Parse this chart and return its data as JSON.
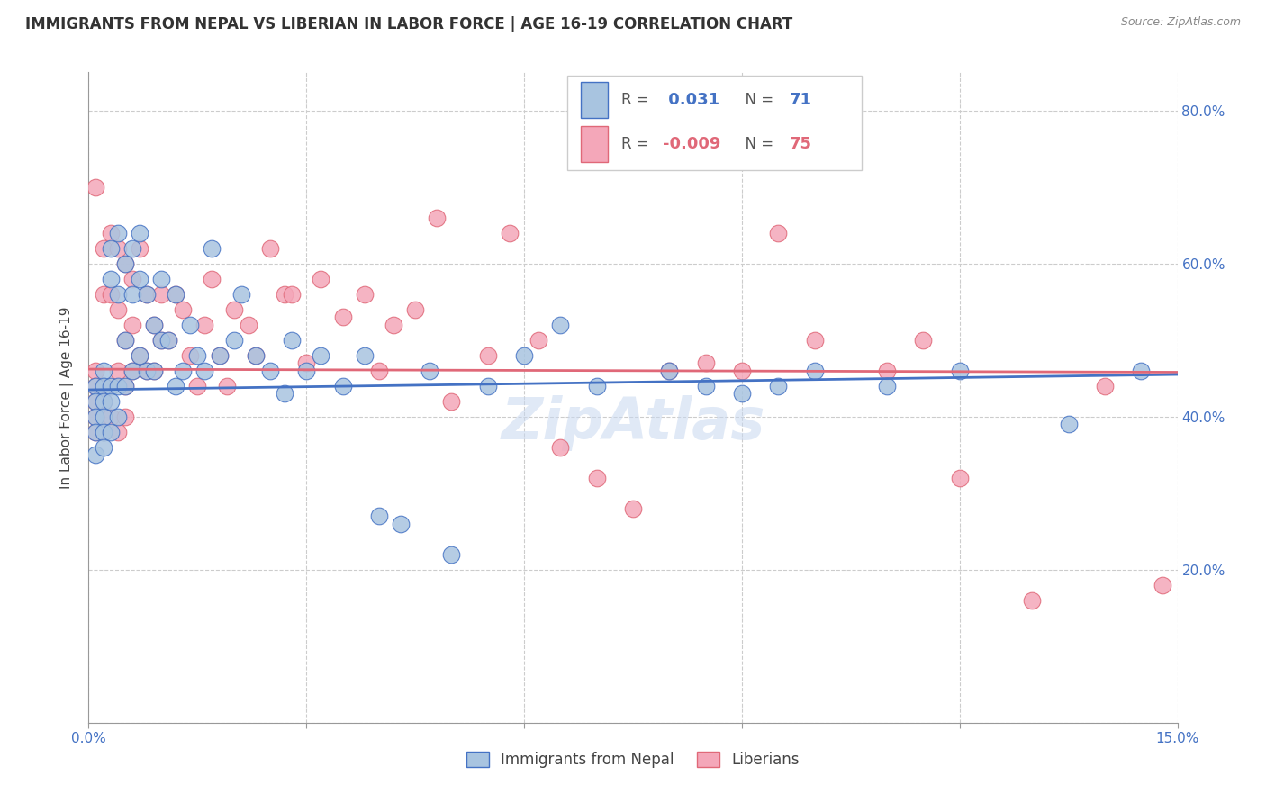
{
  "title": "IMMIGRANTS FROM NEPAL VS LIBERIAN IN LABOR FORCE | AGE 16-19 CORRELATION CHART",
  "source": "Source: ZipAtlas.com",
  "ylabel": "In Labor Force | Age 16-19",
  "x_min": 0.0,
  "x_max": 0.15,
  "y_min": 0.0,
  "y_max": 0.85,
  "x_ticks": [
    0.0,
    0.03,
    0.06,
    0.09,
    0.12,
    0.15
  ],
  "y_ticks": [
    0.0,
    0.2,
    0.4,
    0.6,
    0.8
  ],
  "y_tick_labels": [
    "",
    "20.0%",
    "40.0%",
    "60.0%",
    "80.0%"
  ],
  "nepal_color": "#a8c4e0",
  "liberia_color": "#f4a7b9",
  "nepal_line_color": "#4472c4",
  "liberia_line_color": "#e06878",
  "legend_nepal_label": "Immigrants from Nepal",
  "legend_liberia_label": "Liberians",
  "r_nepal": "0.031",
  "r_liberia": "-0.009",
  "n_nepal": "71",
  "n_liberia": "75",
  "nepal_x": [
    0.001,
    0.001,
    0.001,
    0.001,
    0.001,
    0.002,
    0.002,
    0.002,
    0.002,
    0.002,
    0.002,
    0.003,
    0.003,
    0.003,
    0.003,
    0.003,
    0.004,
    0.004,
    0.004,
    0.004,
    0.005,
    0.005,
    0.005,
    0.006,
    0.006,
    0.006,
    0.007,
    0.007,
    0.007,
    0.008,
    0.008,
    0.009,
    0.009,
    0.01,
    0.01,
    0.011,
    0.012,
    0.012,
    0.013,
    0.014,
    0.015,
    0.016,
    0.017,
    0.018,
    0.02,
    0.021,
    0.023,
    0.025,
    0.027,
    0.028,
    0.03,
    0.032,
    0.035,
    0.038,
    0.04,
    0.043,
    0.047,
    0.05,
    0.055,
    0.06,
    0.065,
    0.07,
    0.08,
    0.085,
    0.09,
    0.095,
    0.1,
    0.11,
    0.12,
    0.135,
    0.145
  ],
  "nepal_y": [
    0.44,
    0.42,
    0.4,
    0.38,
    0.35,
    0.46,
    0.44,
    0.42,
    0.4,
    0.38,
    0.36,
    0.62,
    0.58,
    0.44,
    0.42,
    0.38,
    0.64,
    0.56,
    0.44,
    0.4,
    0.6,
    0.5,
    0.44,
    0.62,
    0.56,
    0.46,
    0.64,
    0.58,
    0.48,
    0.56,
    0.46,
    0.52,
    0.46,
    0.58,
    0.5,
    0.5,
    0.56,
    0.44,
    0.46,
    0.52,
    0.48,
    0.46,
    0.62,
    0.48,
    0.5,
    0.56,
    0.48,
    0.46,
    0.43,
    0.5,
    0.46,
    0.48,
    0.44,
    0.48,
    0.27,
    0.26,
    0.46,
    0.22,
    0.44,
    0.48,
    0.52,
    0.44,
    0.46,
    0.44,
    0.43,
    0.44,
    0.46,
    0.44,
    0.46,
    0.39,
    0.46
  ],
  "liberia_x": [
    0.001,
    0.001,
    0.001,
    0.001,
    0.001,
    0.001,
    0.002,
    0.002,
    0.002,
    0.002,
    0.002,
    0.003,
    0.003,
    0.003,
    0.003,
    0.004,
    0.004,
    0.004,
    0.004,
    0.005,
    0.005,
    0.005,
    0.005,
    0.006,
    0.006,
    0.006,
    0.007,
    0.007,
    0.008,
    0.008,
    0.009,
    0.009,
    0.01,
    0.01,
    0.011,
    0.012,
    0.013,
    0.014,
    0.015,
    0.016,
    0.017,
    0.018,
    0.019,
    0.02,
    0.022,
    0.023,
    0.025,
    0.027,
    0.028,
    0.03,
    0.032,
    0.035,
    0.038,
    0.04,
    0.042,
    0.045,
    0.048,
    0.05,
    0.055,
    0.058,
    0.062,
    0.065,
    0.07,
    0.075,
    0.08,
    0.085,
    0.09,
    0.095,
    0.1,
    0.11,
    0.115,
    0.12,
    0.13,
    0.14,
    0.148
  ],
  "liberia_y": [
    0.7,
    0.46,
    0.44,
    0.42,
    0.4,
    0.38,
    0.62,
    0.56,
    0.44,
    0.42,
    0.38,
    0.64,
    0.56,
    0.44,
    0.4,
    0.62,
    0.54,
    0.46,
    0.38,
    0.6,
    0.5,
    0.44,
    0.4,
    0.58,
    0.52,
    0.46,
    0.62,
    0.48,
    0.56,
    0.46,
    0.52,
    0.46,
    0.56,
    0.5,
    0.5,
    0.56,
    0.54,
    0.48,
    0.44,
    0.52,
    0.58,
    0.48,
    0.44,
    0.54,
    0.52,
    0.48,
    0.62,
    0.56,
    0.56,
    0.47,
    0.58,
    0.53,
    0.56,
    0.46,
    0.52,
    0.54,
    0.66,
    0.42,
    0.48,
    0.64,
    0.5,
    0.36,
    0.32,
    0.28,
    0.46,
    0.47,
    0.46,
    0.64,
    0.5,
    0.46,
    0.5,
    0.32,
    0.16,
    0.44,
    0.18
  ]
}
